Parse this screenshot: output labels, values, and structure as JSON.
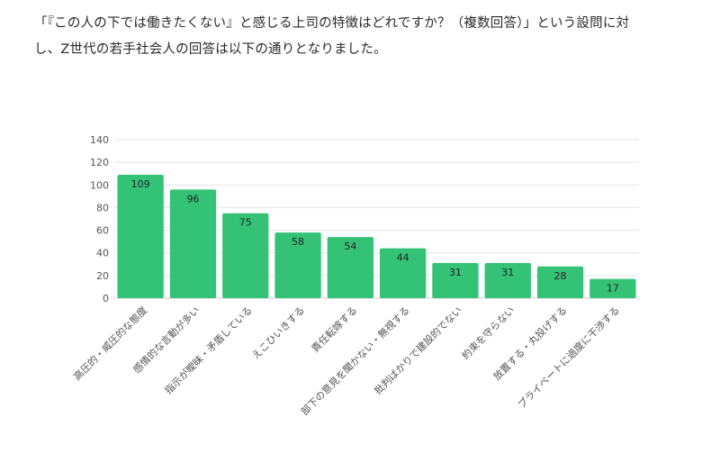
{
  "intro": {
    "line1": "「『この人の下では働きたくない』と感じる上司の特徴はどれですか？（複数回答）」という設問に対",
    "line2": "し、Z世代の若手社会人の回答は以下の通りとなりました。"
  },
  "chart_data": {
    "type": "bar",
    "categories": [
      "高圧的・威圧的な態度",
      "感情的な言動が多い",
      "指示が曖昧・矛盾している",
      "えこひいきする",
      "責任転嫁する",
      "部下の意見を聞かない・無視する",
      "批判ばかりで建設的でない",
      "約束を守らない",
      "放置する・丸投げする",
      "プライベートに過度に干渉する"
    ],
    "values": [
      109,
      96,
      75,
      58,
      54,
      44,
      31,
      31,
      28,
      17
    ],
    "ylim": [
      0,
      140
    ],
    "yticks": [
      0,
      20,
      40,
      60,
      80,
      100,
      120,
      140
    ],
    "grid": true,
    "bar_color": "#34c376",
    "title": "",
    "xlabel": "",
    "ylabel": ""
  }
}
